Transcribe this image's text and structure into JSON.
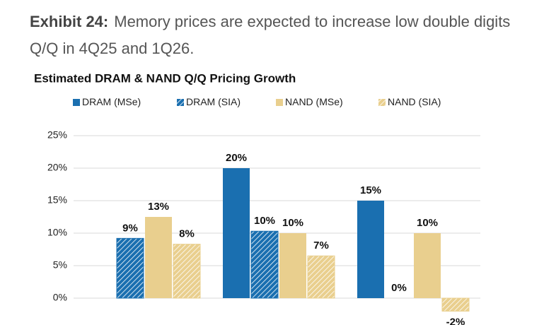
{
  "header": {
    "label": "Exhibit 24:",
    "text": "Memory prices are expected to increase low double digits Q/Q in 4Q25 and 1Q26."
  },
  "chart_data": {
    "type": "bar",
    "title": "Estimated DRAM & NAND Q/Q Pricing Growth",
    "categories": [
      null,
      null,
      null
    ],
    "series": [
      {
        "name": "DRAM (MSe)",
        "color": "#1a6fb0",
        "hatch": false,
        "values": [
          null,
          20,
          15
        ],
        "value_labels": [
          null,
          "20%",
          "15%"
        ]
      },
      {
        "name": "DRAM (SIA)",
        "color": "#1a6fb0",
        "hatch": true,
        "values": [
          9.2,
          10.3,
          0
        ],
        "value_labels": [
          "9%",
          "10%",
          "0%"
        ]
      },
      {
        "name": "NAND (MSe)",
        "color": "#e9cf8e",
        "hatch": false,
        "values": [
          12.5,
          10,
          10
        ],
        "value_labels": [
          "13%",
          "10%",
          "10%"
        ]
      },
      {
        "name": "NAND (SIA)",
        "color": "#e9cf8e",
        "hatch": true,
        "values": [
          8.3,
          6.5,
          -2
        ],
        "value_labels": [
          "8%",
          "7%",
          "-2%"
        ]
      }
    ],
    "ylim": [
      -5,
      25
    ],
    "yticks": [
      {
        "value": 0,
        "label": "0%"
      },
      {
        "value": 5,
        "label": "5%"
      },
      {
        "value": 10,
        "label": "10%"
      },
      {
        "value": 15,
        "label": "15%"
      },
      {
        "value": 20,
        "label": "20%"
      },
      {
        "value": 25,
        "label": "25%"
      }
    ],
    "grid": true
  }
}
